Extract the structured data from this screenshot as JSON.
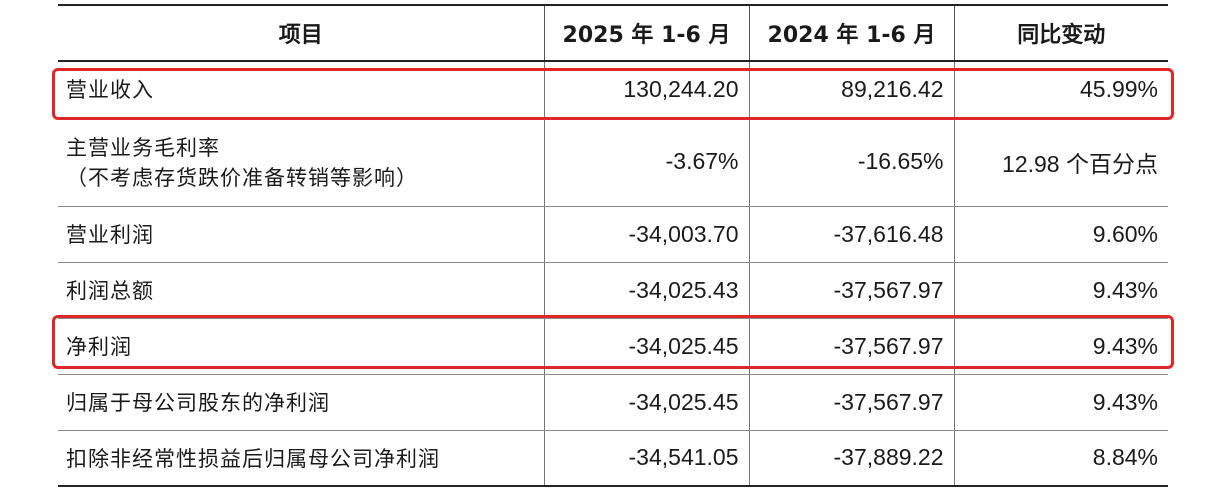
{
  "table": {
    "headers": [
      "项目",
      "2025 年 1-6 月",
      "2024 年 1-6 月",
      "同比变动"
    ],
    "rows": [
      {
        "label": "营业收入",
        "label_sub": "",
        "v2025": "130,244.20",
        "v2024": "89,216.42",
        "change": "45.99%"
      },
      {
        "label": "主营业务毛利率",
        "label_sub": "（不考虑存货跌价准备转销等影响）",
        "v2025": "-3.67%",
        "v2024": "-16.65%",
        "change": "12.98 个百分点"
      },
      {
        "label": "营业利润",
        "label_sub": "",
        "v2025": "-34,003.70",
        "v2024": "-37,616.48",
        "change": "9.60%"
      },
      {
        "label": "利润总额",
        "label_sub": "",
        "v2025": "-34,025.43",
        "v2024": "-37,567.97",
        "change": "9.43%"
      },
      {
        "label": "净利润",
        "label_sub": "",
        "v2025": "-34,025.45",
        "v2024": "-37,567.97",
        "change": "9.43%"
      },
      {
        "label": "归属于母公司股东的净利润",
        "label_sub": "",
        "v2025": "-34,025.45",
        "v2024": "-37,567.97",
        "change": "9.43%"
      },
      {
        "label": "扣除非经常性损益后归属母公司净利润",
        "label_sub": "",
        "v2025": "-34,541.05",
        "v2024": "-37,889.22",
        "change": "8.84%"
      }
    ]
  },
  "highlight_color": "#e0262a"
}
